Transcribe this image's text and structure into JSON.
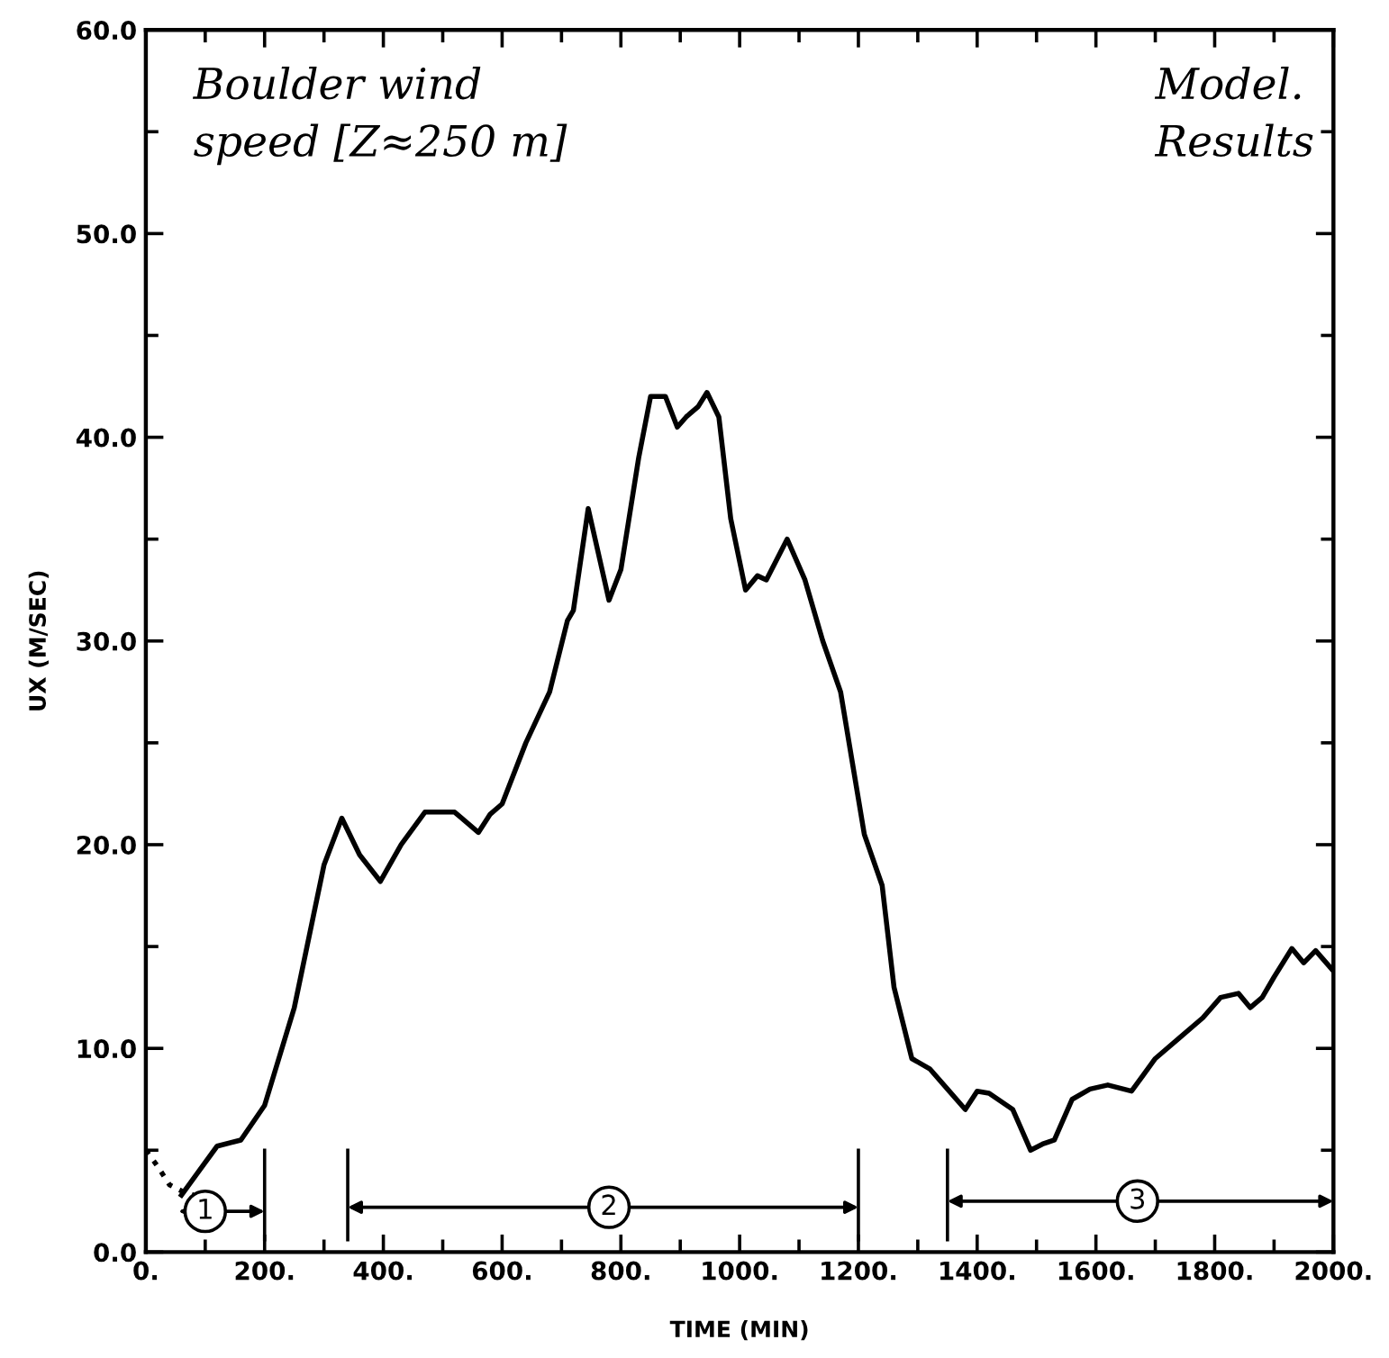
{
  "chart_data": {
    "type": "line",
    "xlabel": "TIME (MIN)",
    "ylabel": "UX (M/SEC)",
    "annotations": [
      "Boulder wind\nspeed [Z≈250 m]",
      "Model.\nResults",
      {
        "text": "1",
        "x": 100,
        "y": 2
      },
      {
        "text": "2",
        "x": 780,
        "y": 2.2
      },
      {
        "text": "3",
        "x": 1670,
        "y": 2.5
      }
    ],
    "series": [
      {
        "color": "#000000",
        "line_style": "dotted",
        "x": [
          0,
          20,
          40,
          60,
          80
        ],
        "values": [
          5.0,
          4.2,
          3.3,
          3.0,
          2.8
        ]
      },
      {
        "color": "#000000",
        "line_style": "solid",
        "x": [
          60,
          90,
          120,
          160,
          200,
          250,
          300,
          330,
          360,
          395,
          430,
          470,
          520,
          560,
          580,
          600,
          640,
          680,
          710,
          720,
          745,
          780,
          800,
          830,
          850,
          875,
          895,
          910,
          930,
          945,
          965,
          985,
          1010,
          1030,
          1045,
          1080,
          1110,
          1140,
          1170,
          1190,
          1210,
          1240,
          1260,
          1290,
          1320,
          1350,
          1380,
          1400,
          1420,
          1460,
          1490,
          1510,
          1530,
          1560,
          1590,
          1620,
          1660,
          1700,
          1740,
          1780,
          1810,
          1840,
          1860,
          1880,
          1900,
          1930,
          1950,
          1970,
          2000
        ],
        "values": [
          2.8,
          4.0,
          5.2,
          5.5,
          7.2,
          12.0,
          19.0,
          21.3,
          19.5,
          18.2,
          20.0,
          21.6,
          21.6,
          20.6,
          21.5,
          22.0,
          25.0,
          27.5,
          31.0,
          31.5,
          36.5,
          32.0,
          33.5,
          39.0,
          42.0,
          42.0,
          40.5,
          41.0,
          41.5,
          42.2,
          41.0,
          36.0,
          32.5,
          33.2,
          33.0,
          35.0,
          33.0,
          30.0,
          27.5,
          24.0,
          20.5,
          18.0,
          13.0,
          9.5,
          9.0,
          8.0,
          7.0,
          7.9,
          7.8,
          7.0,
          5.0,
          5.3,
          5.5,
          7.5,
          8.0,
          8.2,
          7.9,
          9.5,
          10.5,
          11.5,
          12.5,
          12.7,
          12.0,
          12.5,
          13.5,
          14.9,
          14.2,
          14.8,
          13.8
        ]
      }
    ],
    "xlim": [
      0,
      2000
    ],
    "ylim": [
      0,
      60
    ],
    "xticks": [
      {
        "value": 0,
        "label": "0."
      },
      {
        "value": 200,
        "label": "200."
      },
      {
        "value": 400,
        "label": "400."
      },
      {
        "value": 600,
        "label": "600."
      },
      {
        "value": 800,
        "label": "800."
      },
      {
        "value": 1000,
        "label": "1000."
      },
      {
        "value": 1200,
        "label": "1200."
      },
      {
        "value": 1400,
        "label": "1400."
      },
      {
        "value": 1600,
        "label": "1600."
      },
      {
        "value": 1800,
        "label": "1800."
      },
      {
        "value": 2000,
        "label": "2000."
      }
    ],
    "yticks": [
      {
        "value": 0,
        "label": "0.0"
      },
      {
        "value": 10,
        "label": "10.0"
      },
      {
        "value": 20,
        "label": "20.0"
      },
      {
        "value": 30,
        "label": "30.0"
      },
      {
        "value": 40,
        "label": "40.0"
      },
      {
        "value": 50,
        "label": "50.0"
      },
      {
        "value": 60,
        "label": "60.0"
      }
    ],
    "grid": false,
    "marker": "none"
  }
}
